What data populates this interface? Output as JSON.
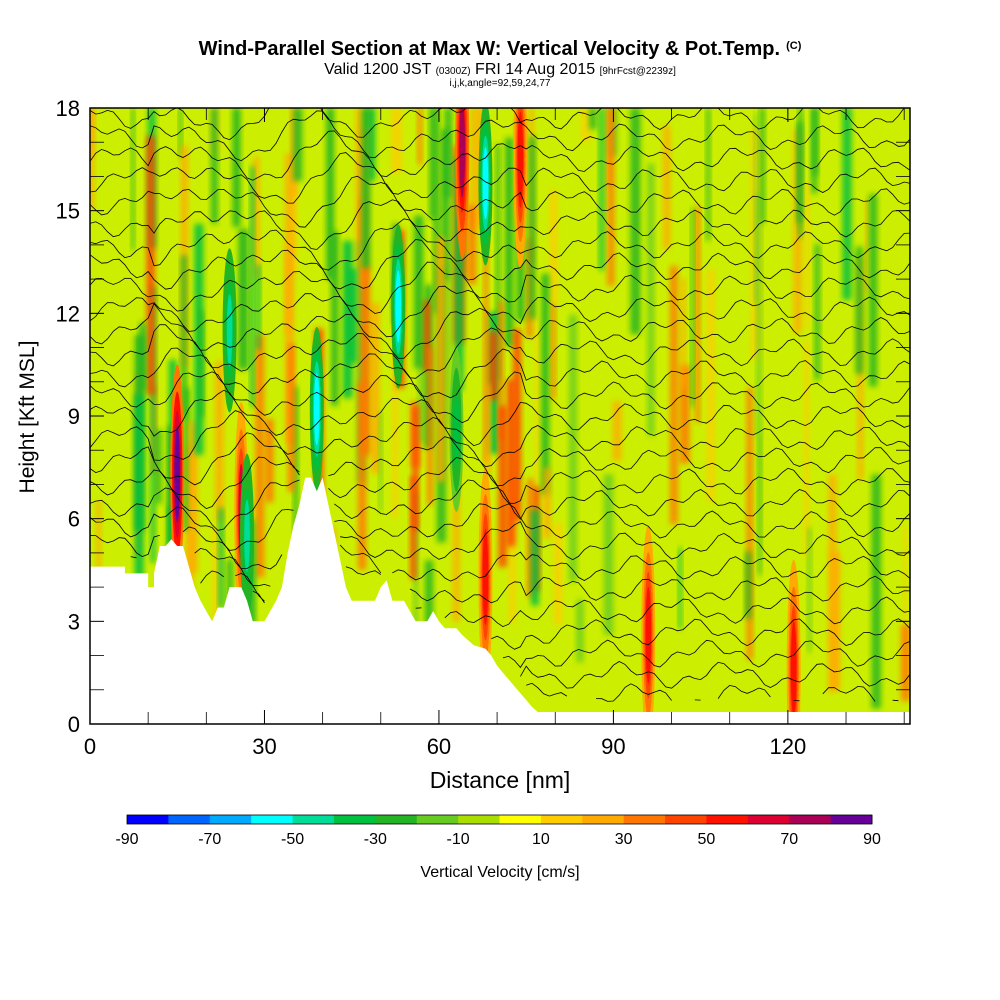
{
  "chart_data": {
    "type": "heatmap",
    "title": "Wind-Parallel Section at Max W: Vertical Velocity & Pot.Temp.",
    "title_badge": "(C)",
    "subtitle_parts": {
      "valid": "Valid 1200 JST",
      "utc": "(0300Z)",
      "date": "FRI 14 Aug 2015",
      "forecast": "[9hrFcst@2239z]"
    },
    "subtitle2": "i,j,k,angle=92,59,24,77",
    "xlabel": "Distance [nm]",
    "ylabel": "Height [Kft MSL]",
    "xlim": [
      0,
      141
    ],
    "ylim": [
      0,
      18
    ],
    "x_ticks": [
      "0",
      "30",
      "60",
      "90",
      "120"
    ],
    "y_ticks": [
      "0",
      "3",
      "6",
      "9",
      "12",
      "15",
      "18"
    ],
    "colorbar": {
      "label": "Vertical Velocity [cm/s]",
      "tick_labels": [
        "-90",
        "-70",
        "-50",
        "-30",
        "-10",
        "10",
        "30",
        "50",
        "70",
        "90"
      ],
      "colors": [
        "#0000ff",
        "#0064ff",
        "#00aaff",
        "#00ffff",
        "#00dd99",
        "#00c040",
        "#22b422",
        "#66cc22",
        "#aadd00",
        "#ffff00",
        "#ffcc00",
        "#ffaa00",
        "#ff7700",
        "#ff4400",
        "#ff1100",
        "#dd0033",
        "#aa0055",
        "#660099"
      ]
    },
    "terrain_kft": [
      [
        0,
        4.6
      ],
      [
        6,
        4.6
      ],
      [
        6,
        4.4
      ],
      [
        10,
        4.4
      ],
      [
        10,
        4
      ],
      [
        11,
        4
      ],
      [
        11,
        4.4
      ],
      [
        12,
        5.2
      ],
      [
        13,
        5.2
      ],
      [
        14,
        5.4
      ],
      [
        15,
        5.2
      ],
      [
        16,
        5.2
      ],
      [
        17,
        4.6
      ],
      [
        18,
        4
      ],
      [
        19,
        3.6
      ],
      [
        20,
        3.3
      ],
      [
        21,
        3
      ],
      [
        22,
        3.4
      ],
      [
        23,
        3.4
      ],
      [
        24,
        4
      ],
      [
        26,
        4
      ],
      [
        27,
        3.6
      ],
      [
        28,
        3
      ],
      [
        30,
        3
      ],
      [
        31,
        3.3
      ],
      [
        32,
        3.6
      ],
      [
        33,
        4
      ],
      [
        34,
        5
      ],
      [
        35,
        5.8
      ],
      [
        36,
        6.4
      ],
      [
        37,
        7.2
      ],
      [
        38,
        7.2
      ],
      [
        39,
        6.8
      ],
      [
        40,
        7.2
      ],
      [
        41,
        6.4
      ],
      [
        42,
        5.6
      ],
      [
        43,
        4.8
      ],
      [
        44,
        4
      ],
      [
        45,
        3.6
      ],
      [
        49,
        3.6
      ],
      [
        50,
        4
      ],
      [
        51,
        4.2
      ],
      [
        52,
        3.6
      ],
      [
        54,
        3.6
      ],
      [
        55,
        3.3
      ],
      [
        56,
        3
      ],
      [
        58,
        3
      ],
      [
        59,
        3.3
      ],
      [
        60,
        3
      ],
      [
        61,
        2.8
      ],
      [
        63,
        2.8
      ],
      [
        64,
        2.6
      ],
      [
        66,
        2.3
      ],
      [
        68,
        2.2
      ],
      [
        69,
        2
      ],
      [
        70,
        1.7
      ],
      [
        71,
        1.5
      ],
      [
        72,
        1.3
      ],
      [
        73,
        1.1
      ],
      [
        74,
        0.9
      ],
      [
        75,
        0.7
      ],
      [
        76,
        0.5
      ],
      [
        77,
        0.35
      ],
      [
        78,
        0.35
      ],
      [
        141,
        0.35
      ]
    ],
    "updrafts": [
      {
        "x": 15,
        "y": 7.3,
        "value": 85
      },
      {
        "x": 26,
        "y": 6.2,
        "value": 60
      },
      {
        "x": 64,
        "y": 16.8,
        "value": 70
      },
      {
        "x": 74,
        "y": 16.5,
        "value": 55
      },
      {
        "x": 68,
        "y": 4.3,
        "value": 55
      },
      {
        "x": 96,
        "y": 2.6,
        "value": 50
      },
      {
        "x": 121,
        "y": 1.6,
        "value": 50
      }
    ],
    "downdrafts": [
      {
        "x": 39,
        "y": 9.2,
        "value": -55
      },
      {
        "x": 53,
        "y": 12.2,
        "value": -60
      },
      {
        "x": 68,
        "y": 15.8,
        "value": -60
      },
      {
        "x": 24,
        "y": 11.5,
        "value": -45
      },
      {
        "x": 27,
        "y": 5.5,
        "value": -45
      },
      {
        "x": 63,
        "y": 8.6,
        "value": -35
      }
    ],
    "theta_contours": {
      "count": 28
    }
  }
}
